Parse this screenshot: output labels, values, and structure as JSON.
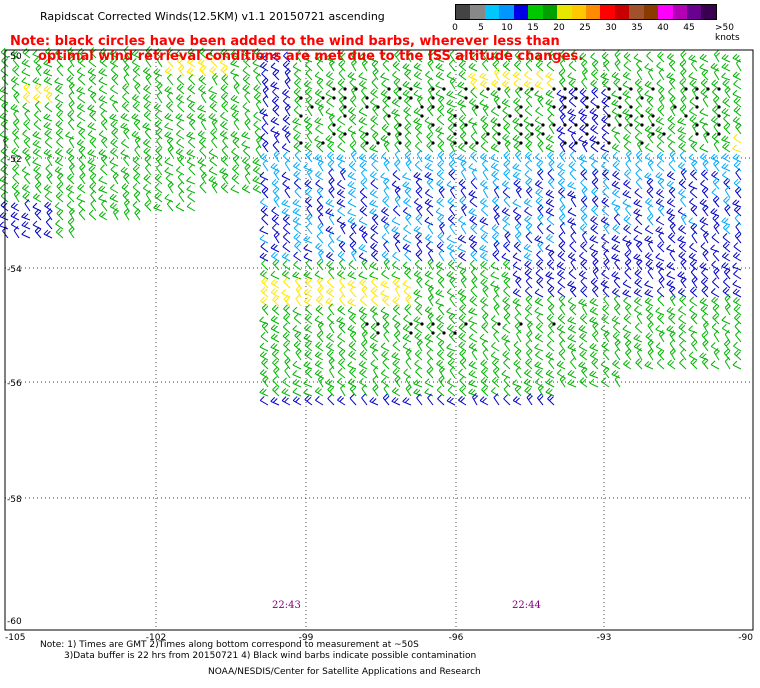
{
  "header": {
    "title": "Rapidscat Corrected Winds(12.5KM) v1.1 20150721 ascending",
    "note_line1": "Note: black circles have been added to the wind barbs, wherever less than",
    "note_line2": "optimal wind retrieval conditions are met due to the ISS altitude changes."
  },
  "legend": {
    "ticks": [
      "0",
      "5",
      "10",
      "15",
      "20",
      "25",
      "30",
      "35",
      "40",
      "45",
      ">50 knots"
    ],
    "colors": [
      "#444444",
      "#888888",
      "#00c8ff",
      "#0096ff",
      "#0000e6",
      "#00c800",
      "#00a000",
      "#e6e600",
      "#ffc800",
      "#ff8c00",
      "#ff0000",
      "#c80000",
      "#a0522d",
      "#8b3a00",
      "#ff00ff",
      "#b400b4",
      "#6a0090",
      "#3a0050"
    ]
  },
  "axes": {
    "lat_labels": [
      "-50",
      "-52",
      "-54",
      "-56",
      "-58",
      "-60"
    ],
    "lon_labels": [
      "-105",
      "-102",
      "-99",
      "-96",
      "-93",
      "-90"
    ]
  },
  "times": [
    "22:43",
    "22:44"
  ],
  "footer": {
    "line1": "Note: 1) Times are GMT 2)Times along bottom correspond to measurement at ~50S",
    "line2": "3)Data buffer is 22 hrs from 20150721 4) Black wind barbs indicate possible contamination",
    "line3": "NOAA/NESDIS/Center for Satellite Applications and Research"
  },
  "palette": {
    "blue": "#0000cc",
    "cyan": "#00aaff",
    "green": "#00b400",
    "lightgreen": "#00cc00",
    "yellow": "#ffe600",
    "black": "#000000",
    "note_red": "#ff0000",
    "time_purple": "#800080"
  }
}
